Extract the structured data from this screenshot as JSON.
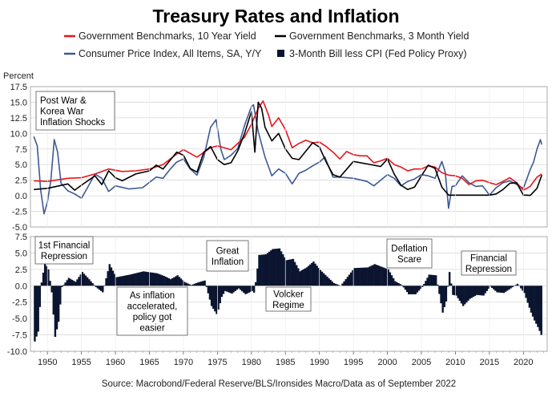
{
  "chart_data": {
    "type": "line",
    "title": "Treasury Rates and Inflation",
    "ylabel": "Percent",
    "source": "Source: Macrobond/Federal Reserve/BLS/Ironsides Macro/Data as of September 2022",
    "xlim": [
      1947.5,
      2023.5
    ],
    "x_ticks": [
      1950,
      1955,
      1960,
      1965,
      1970,
      1975,
      1980,
      1985,
      1990,
      1995,
      2000,
      2005,
      2010,
      2015,
      2020
    ],
    "top_panel": {
      "ylim": [
        -5.0,
        17.5
      ],
      "y_ticks": [
        "17.5",
        "15.0",
        "12.5",
        "10.0",
        "7.5",
        "5.0",
        "2.5",
        "0.0",
        "-2.5",
        "-5.0"
      ],
      "grid": true
    },
    "bottom_panel": {
      "ylim": [
        -10.0,
        7.5
      ],
      "y_ticks": [
        "7.5",
        "5.0",
        "2.5",
        "0.0",
        "-2.5",
        "-5.0",
        "-7.5",
        "-10.0"
      ],
      "grid": true
    },
    "legend": [
      {
        "name": "Government Benchmarks, 10 Year Yield",
        "color": "#e8141c",
        "kind": "line"
      },
      {
        "name": "Government Benchmarks, 3 Month Yield",
        "color": "#000000",
        "kind": "line"
      },
      {
        "name": "Consumer Price Index, All Items, SA, Y/Y",
        "color": "#3d5a93",
        "kind": "line"
      },
      {
        "name": "3-Month Bill less CPI (Fed Policy Proxy)",
        "color": "#0b1530",
        "kind": "bar"
      }
    ],
    "series": [
      {
        "name": "Government Benchmarks, 10 Year Yield",
        "panel": "top",
        "color": "#e8141c",
        "x": [
          1948,
          1950,
          1953,
          1955,
          1957,
          1959,
          1961,
          1963,
          1965,
          1967,
          1969,
          1970,
          1972,
          1974,
          1975,
          1977,
          1979,
          1980,
          1981,
          1981.7,
          1982.5,
          1983,
          1984,
          1985,
          1986,
          1987,
          1988,
          1989,
          1990,
          1991,
          1992,
          1993,
          1994,
          1995,
          1996,
          1997,
          1998,
          1999,
          2000,
          2001,
          2002,
          2003,
          2004,
          2005,
          2006,
          2007,
          2008,
          2009,
          2010,
          2011,
          2012,
          2013,
          2014,
          2015,
          2016,
          2017,
          2018,
          2019,
          2020,
          2021,
          2022,
          2022.7
        ],
        "y": [
          2.4,
          2.3,
          2.8,
          2.9,
          3.5,
          4.3,
          3.9,
          4.0,
          4.3,
          5.0,
          6.7,
          7.4,
          6.2,
          7.7,
          8.0,
          7.4,
          9.4,
          11.5,
          14.0,
          15.2,
          13.0,
          11.1,
          12.5,
          10.6,
          7.7,
          8.4,
          8.9,
          8.5,
          8.6,
          7.9,
          7.0,
          5.9,
          7.1,
          6.6,
          6.4,
          6.4,
          5.3,
          5.6,
          6.0,
          5.0,
          4.6,
          4.0,
          4.3,
          4.3,
          4.8,
          4.6,
          3.7,
          3.3,
          3.2,
          2.8,
          1.8,
          2.4,
          2.5,
          2.1,
          1.8,
          2.3,
          2.9,
          2.1,
          0.9,
          1.5,
          3.0,
          3.5
        ]
      },
      {
        "name": "Government Benchmarks, 3 Month Yield",
        "panel": "top",
        "color": "#000000",
        "x": [
          1948,
          1950,
          1953,
          1954,
          1955,
          1957,
          1958,
          1959,
          1960,
          1961,
          1963,
          1965,
          1966,
          1967,
          1969,
          1970,
          1971,
          1972,
          1973,
          1974,
          1975,
          1976,
          1977,
          1978,
          1979,
          1980,
          1980.5,
          1981,
          1981.5,
          1982,
          1983,
          1984,
          1985,
          1986,
          1987,
          1989,
          1990,
          1991,
          1992,
          1993,
          1995,
          1997,
          1999,
          2000,
          2001,
          2002,
          2003,
          2004,
          2005,
          2006,
          2007,
          2008,
          2009,
          2012,
          2015,
          2016,
          2017,
          2018,
          2019,
          2020,
          2020.5,
          2021,
          2022,
          2022.7
        ],
        "y": [
          1.0,
          1.2,
          1.9,
          0.9,
          1.7,
          3.2,
          1.8,
          4.0,
          2.9,
          2.4,
          3.5,
          4.0,
          4.9,
          4.3,
          7.0,
          6.5,
          4.4,
          3.8,
          7.0,
          7.9,
          5.8,
          5.0,
          5.3,
          7.2,
          10.0,
          13.5,
          7.0,
          15.0,
          14.0,
          11.0,
          8.8,
          10.0,
          7.5,
          6.0,
          5.8,
          8.5,
          7.8,
          5.4,
          3.4,
          3.0,
          5.5,
          5.1,
          4.7,
          5.9,
          3.5,
          1.7,
          1.0,
          1.4,
          3.2,
          4.9,
          4.4,
          1.4,
          0.1,
          0.1,
          0.1,
          0.3,
          1.0,
          2.0,
          2.1,
          0.1,
          0.1,
          0.05,
          1.2,
          3.3
        ]
      },
      {
        "name": "Consumer Price Index, All Items, SA, Y/Y",
        "panel": "top",
        "color": "#3d5a93",
        "x": [
          1948,
          1948.5,
          1949,
          1949.5,
          1950,
          1950.5,
          1951,
          1951.5,
          1952,
          1953,
          1954,
          1955,
          1956,
          1957,
          1958,
          1959,
          1960,
          1962,
          1964,
          1966,
          1967,
          1968,
          1969,
          1970,
          1971,
          1972,
          1973,
          1974,
          1974.8,
          1975.5,
          1976,
          1977,
          1978,
          1979,
          1980,
          1980.3,
          1981,
          1982,
          1983,
          1984,
          1985,
          1986,
          1987,
          1988,
          1989,
          1990,
          1990.8,
          1992,
          1993,
          1995,
          1997,
          1998,
          2000,
          2001,
          2002,
          2003,
          2004,
          2005,
          2006,
          2007,
          2008,
          2008.5,
          2009,
          2009.5,
          2010,
          2011,
          2012,
          2013,
          2014,
          2015,
          2016,
          2017,
          2018,
          2019,
          2020,
          2021,
          2021.5,
          2022,
          2022.5,
          2022.7
        ],
        "y": [
          9.5,
          8.0,
          1.0,
          -2.9,
          -1.0,
          2.5,
          9.0,
          7.0,
          2.0,
          0.8,
          0.3,
          -0.4,
          1.5,
          3.5,
          2.8,
          0.7,
          1.6,
          1.1,
          1.3,
          3.0,
          2.8,
          4.2,
          5.4,
          5.9,
          4.3,
          3.3,
          6.2,
          11.0,
          12.2,
          7.5,
          5.8,
          6.5,
          7.6,
          11.3,
          14.3,
          14.6,
          10.3,
          6.2,
          3.2,
          4.3,
          3.6,
          1.9,
          3.6,
          4.1,
          4.8,
          5.4,
          6.2,
          3.0,
          3.0,
          2.8,
          2.3,
          1.6,
          3.4,
          2.8,
          1.6,
          2.3,
          2.7,
          3.4,
          3.2,
          2.8,
          5.5,
          3.8,
          -2.0,
          1.5,
          1.6,
          3.2,
          2.1,
          1.5,
          1.6,
          0.1,
          1.3,
          2.1,
          2.4,
          1.8,
          1.2,
          4.2,
          5.4,
          7.5,
          9.0,
          8.2
        ]
      },
      {
        "name": "3-Month Bill less CPI (Fed Policy Proxy)",
        "panel": "bottom",
        "color": "#0b1530",
        "x": [
          1948,
          1948.5,
          1949,
          1949.5,
          1950,
          1950.5,
          1951,
          1951.5,
          1952,
          1953,
          1954,
          1955,
          1956,
          1957,
          1958,
          1959,
          1960,
          1962,
          1964,
          1966,
          1967,
          1968,
          1969,
          1970,
          1971,
          1972,
          1973,
          1974,
          1974.8,
          1975.5,
          1976,
          1977,
          1978,
          1979,
          1980,
          1980.3,
          1981,
          1982,
          1983,
          1984,
          1985,
          1986,
          1987,
          1988,
          1989,
          1990,
          1990.8,
          1992,
          1993,
          1995,
          1997,
          1998,
          2000,
          2001,
          2002,
          2003,
          2004,
          2005,
          2006,
          2007,
          2008,
          2008.5,
          2009,
          2009.5,
          2010,
          2011,
          2012,
          2013,
          2014,
          2015,
          2016,
          2017,
          2018,
          2019,
          2020,
          2021,
          2021.5,
          2022,
          2022.5,
          2022.7
        ],
        "y": [
          -8.5,
          -7.0,
          0.5,
          3.5,
          2.5,
          -1.0,
          -7.8,
          -5.5,
          -0.2,
          1.2,
          0.6,
          2.1,
          1.0,
          -0.2,
          -1.0,
          3.3,
          1.3,
          1.7,
          2.2,
          1.9,
          1.5,
          1.0,
          1.6,
          0.6,
          0.1,
          0.5,
          0.8,
          -3.1,
          -4.4,
          -1.7,
          -0.8,
          -1.2,
          -0.4,
          -1.3,
          -0.8,
          -1.1,
          4.7,
          4.8,
          5.6,
          5.7,
          3.9,
          4.1,
          2.2,
          2.8,
          3.7,
          2.4,
          1.6,
          0.4,
          0.0,
          2.7,
          2.8,
          3.3,
          2.5,
          0.7,
          0.1,
          -1.3,
          -1.3,
          -0.2,
          1.7,
          1.6,
          -4.1,
          -2.4,
          2.1,
          -1.4,
          -1.5,
          -3.1,
          -2.0,
          -1.4,
          -1.5,
          -0.1,
          -1.0,
          -1.1,
          -0.4,
          0.3,
          -1.1,
          -4.1,
          -5.3,
          -6.3,
          -7.5,
          -6.1
        ]
      }
    ],
    "annotations": [
      {
        "id": "post-war",
        "lines": [
          "Post War &",
          "Korea War",
          "Inflation Shocks"
        ]
      },
      {
        "id": "first-repression",
        "lines": [
          "1st Financial",
          "Repression"
        ]
      },
      {
        "id": "great-inflation",
        "lines": [
          "Great",
          "Inflation"
        ]
      },
      {
        "id": "as-inflation",
        "lines": [
          "As inflation",
          "accelerated,",
          "policy got",
          "easier"
        ]
      },
      {
        "id": "volcker",
        "lines": [
          "Volcker",
          "Regime"
        ]
      },
      {
        "id": "deflation-scare",
        "lines": [
          "Deflation",
          "Scare"
        ]
      },
      {
        "id": "financial-repression",
        "lines": [
          "Financial",
          "Repression"
        ]
      }
    ]
  }
}
